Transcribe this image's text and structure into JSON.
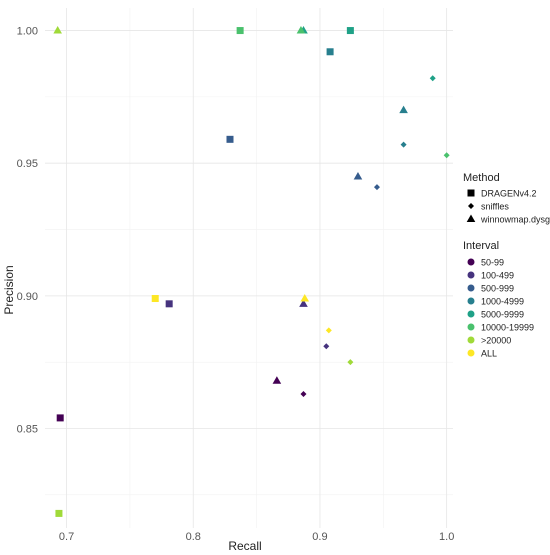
{
  "chart_data": {
    "type": "scatter",
    "title": "",
    "xlabel": "Recall",
    "ylabel": "Precision",
    "xlim": [
      0.683,
      1.005
    ],
    "ylim": [
      0.8125,
      1.0085
    ],
    "grid": true,
    "x_ticks": [
      {
        "value": 0.7,
        "label": "0.7"
      },
      {
        "value": 0.8,
        "label": "0.8"
      },
      {
        "value": 0.9,
        "label": "0.9"
      },
      {
        "value": 1.0,
        "label": "1.0"
      }
    ],
    "y_ticks": [
      {
        "value": 0.85,
        "label": "0.85"
      },
      {
        "value": 0.9,
        "label": "0.90"
      },
      {
        "value": 0.95,
        "label": "0.95"
      },
      {
        "value": 1.0,
        "label": "1.00"
      }
    ],
    "legend": {
      "position": "right",
      "method_title": "Method",
      "methods": [
        {
          "name": "DRAGENv4.2",
          "shape": "square"
        },
        {
          "name": "sniffles",
          "shape": "diamond"
        },
        {
          "name": "winnowmap.dysgu",
          "shape": "triangle"
        }
      ],
      "interval_title": "Interval",
      "intervals": [
        {
          "name": "50-99",
          "color": "#440154"
        },
        {
          "name": "100-499",
          "color": "#46337e"
        },
        {
          "name": "500-999",
          "color": "#365c8d"
        },
        {
          "name": "1000-4999",
          "color": "#277f8e"
        },
        {
          "name": "5000-9999",
          "color": "#1fa187"
        },
        {
          "name": "10000-19999",
          "color": "#4ac16d"
        },
        {
          "name": ">20000",
          "color": "#a0da39"
        },
        {
          "name": "ALL",
          "color": "#fde725"
        }
      ]
    },
    "points": [
      {
        "x": 0.695,
        "y": 0.854,
        "method": "DRAGENv4.2",
        "interval": "50-99"
      },
      {
        "x": 0.781,
        "y": 0.897,
        "method": "DRAGENv4.2",
        "interval": "100-499"
      },
      {
        "x": 0.829,
        "y": 0.959,
        "method": "DRAGENv4.2",
        "interval": "500-999"
      },
      {
        "x": 0.908,
        "y": 0.992,
        "method": "DRAGENv4.2",
        "interval": "1000-4999"
      },
      {
        "x": 0.924,
        "y": 1.0,
        "method": "DRAGENv4.2",
        "interval": "5000-9999"
      },
      {
        "x": 0.837,
        "y": 1.0,
        "method": "DRAGENv4.2",
        "interval": "10000-19999"
      },
      {
        "x": 0.694,
        "y": 0.818,
        "method": "DRAGENv4.2",
        "interval": ">20000"
      },
      {
        "x": 0.77,
        "y": 0.899,
        "method": "DRAGENv4.2",
        "interval": "ALL"
      },
      {
        "x": 0.887,
        "y": 0.863,
        "method": "sniffles",
        "interval": "50-99"
      },
      {
        "x": 0.905,
        "y": 0.881,
        "method": "sniffles",
        "interval": "100-499"
      },
      {
        "x": 0.945,
        "y": 0.941,
        "method": "sniffles",
        "interval": "500-999"
      },
      {
        "x": 0.966,
        "y": 0.957,
        "method": "sniffles",
        "interval": "1000-4999"
      },
      {
        "x": 0.989,
        "y": 0.982,
        "method": "sniffles",
        "interval": "5000-9999"
      },
      {
        "x": 1.0,
        "y": 0.953,
        "method": "sniffles",
        "interval": "10000-19999"
      },
      {
        "x": 0.924,
        "y": 0.875,
        "method": "sniffles",
        "interval": ">20000"
      },
      {
        "x": 0.907,
        "y": 0.887,
        "method": "sniffles",
        "interval": "ALL"
      },
      {
        "x": 0.866,
        "y": 0.868,
        "method": "winnowmap.dysgu",
        "interval": "50-99"
      },
      {
        "x": 0.887,
        "y": 0.897,
        "method": "winnowmap.dysgu",
        "interval": "100-499"
      },
      {
        "x": 0.93,
        "y": 0.945,
        "method": "winnowmap.dysgu",
        "interval": "500-999"
      },
      {
        "x": 0.966,
        "y": 0.97,
        "method": "winnowmap.dysgu",
        "interval": "1000-4999"
      },
      {
        "x": 0.887,
        "y": 1.0,
        "method": "winnowmap.dysgu",
        "interval": "5000-9999"
      },
      {
        "x": 0.885,
        "y": 1.0,
        "method": "winnowmap.dysgu",
        "interval": "10000-19999"
      },
      {
        "x": 0.693,
        "y": 1.0,
        "method": "winnowmap.dysgu",
        "interval": ">20000"
      },
      {
        "x": 0.888,
        "y": 0.899,
        "method": "winnowmap.dysgu",
        "interval": "ALL"
      }
    ]
  }
}
